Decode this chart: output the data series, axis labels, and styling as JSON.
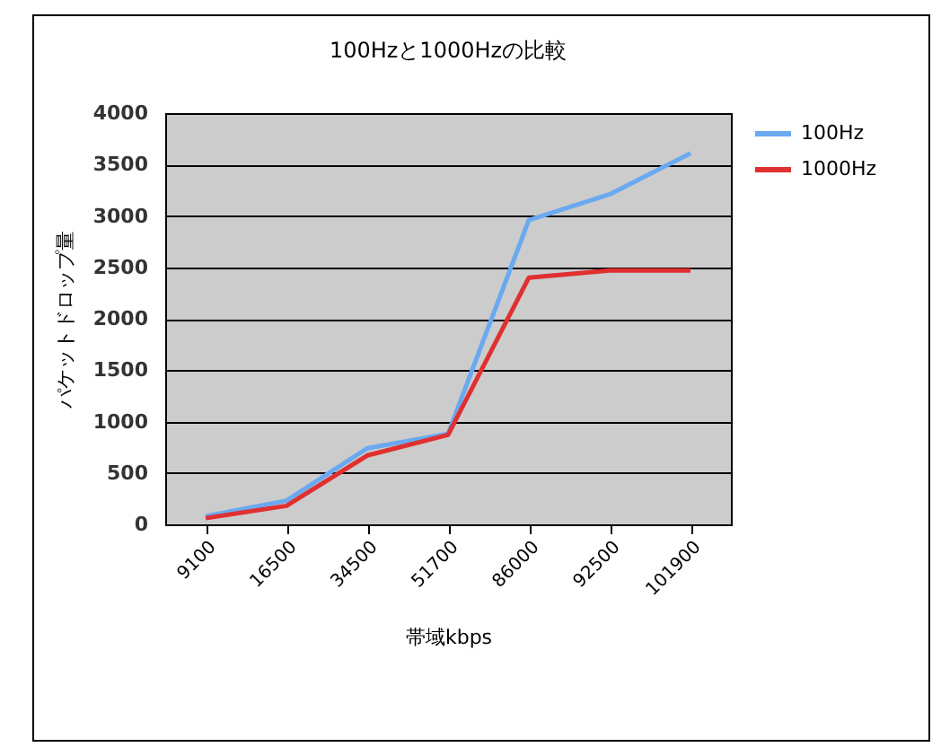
{
  "chart_data": {
    "type": "line",
    "title": "100Hzと1000Hzの比較",
    "xlabel": "帯域kbps",
    "ylabel": "パケットドロップ量",
    "categories": [
      "9100",
      "16500",
      "34500",
      "51700",
      "86000",
      "92500",
      "101900"
    ],
    "series": [
      {
        "name": "100Hz",
        "color": "#6aa9f0",
        "values": [
          80,
          230,
          740,
          880,
          2960,
          3210,
          3610
        ]
      },
      {
        "name": "1000Hz",
        "color": "#e03030",
        "values": [
          60,
          180,
          670,
          870,
          2400,
          2470,
          2470
        ]
      }
    ],
    "ylim": [
      0,
      4000
    ],
    "yticks": [
      0,
      500,
      1000,
      1500,
      2000,
      2500,
      3000,
      3500,
      4000
    ],
    "grid": "y",
    "legend": "right",
    "marker": "none",
    "line_style": "solid"
  }
}
